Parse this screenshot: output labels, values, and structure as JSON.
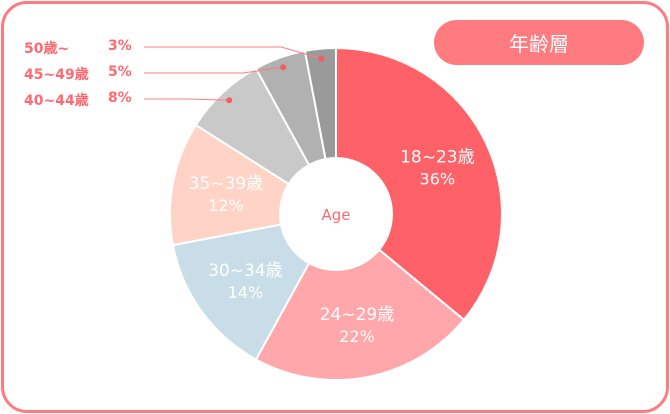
{
  "title": "年齢層",
  "chart_data": {
    "type": "pie",
    "center_label": "Age",
    "slices": [
      {
        "label": "18~23歳",
        "value": 36,
        "value_label": "36%",
        "color": "#ff6168"
      },
      {
        "label": "24~29歳",
        "value": 22,
        "value_label": "22%",
        "color": "#ffa7aa"
      },
      {
        "label": "30~34歳",
        "value": 14,
        "value_label": "14%",
        "color": "#c8dde7"
      },
      {
        "label": "35~39歳",
        "value": 12,
        "value_label": "12%",
        "color": "#ffd4c6"
      },
      {
        "label": "40~44歳",
        "value": 8,
        "value_label": "8%",
        "color": "#c9c9c9"
      },
      {
        "label": "45~49歳",
        "value": 5,
        "value_label": "5%",
        "color": "#b1b1b1"
      },
      {
        "label": "50歳~",
        "value": 3,
        "value_label": "3%",
        "color": "#9a9a9a"
      }
    ],
    "accent": "#ff7b80"
  }
}
